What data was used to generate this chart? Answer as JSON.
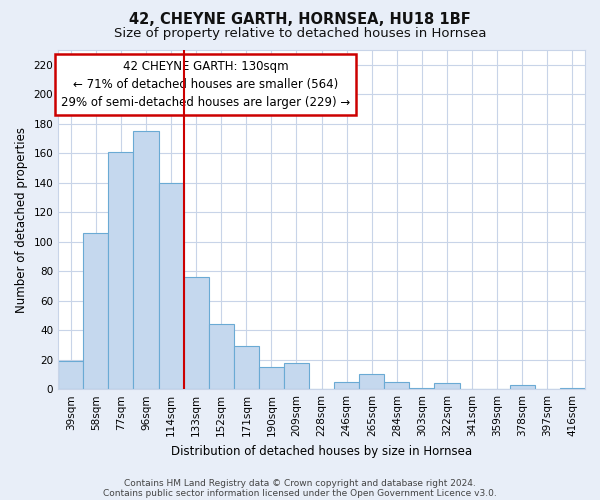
{
  "title": "42, CHEYNE GARTH, HORNSEA, HU18 1BF",
  "subtitle": "Size of property relative to detached houses in Hornsea",
  "xlabel": "Distribution of detached houses by size in Hornsea",
  "ylabel": "Number of detached properties",
  "categories": [
    "39sqm",
    "58sqm",
    "77sqm",
    "96sqm",
    "114sqm",
    "133sqm",
    "152sqm",
    "171sqm",
    "190sqm",
    "209sqm",
    "228sqm",
    "246sqm",
    "265sqm",
    "284sqm",
    "303sqm",
    "322sqm",
    "341sqm",
    "359sqm",
    "378sqm",
    "397sqm",
    "416sqm"
  ],
  "values": [
    19,
    106,
    161,
    175,
    140,
    76,
    44,
    29,
    15,
    18,
    0,
    5,
    10,
    5,
    1,
    4,
    0,
    0,
    3,
    0,
    1
  ],
  "bar_color": "#c5d8ee",
  "bar_edge_color": "#6aaad4",
  "vline_color": "#cc0000",
  "vline_x": 4.5,
  "annotation_text": "42 CHEYNE GARTH: 130sqm\n← 71% of detached houses are smaller (564)\n29% of semi-detached houses are larger (229) →",
  "annotation_box_color": "#ffffff",
  "annotation_box_edge_color": "#cc0000",
  "ylim": [
    0,
    230
  ],
  "yticks": [
    0,
    20,
    40,
    60,
    80,
    100,
    120,
    140,
    160,
    180,
    200,
    220
  ],
  "footer1": "Contains HM Land Registry data © Crown copyright and database right 2024.",
  "footer2": "Contains public sector information licensed under the Open Government Licence v3.0.",
  "background_color": "#e8eef8",
  "plot_background_color": "#ffffff",
  "grid_color": "#c8d4e8",
  "title_fontsize": 10.5,
  "subtitle_fontsize": 9.5,
  "xlabel_fontsize": 8.5,
  "ylabel_fontsize": 8.5,
  "tick_fontsize": 7.5,
  "annotation_fontsize": 8.5,
  "footer_fontsize": 6.5
}
